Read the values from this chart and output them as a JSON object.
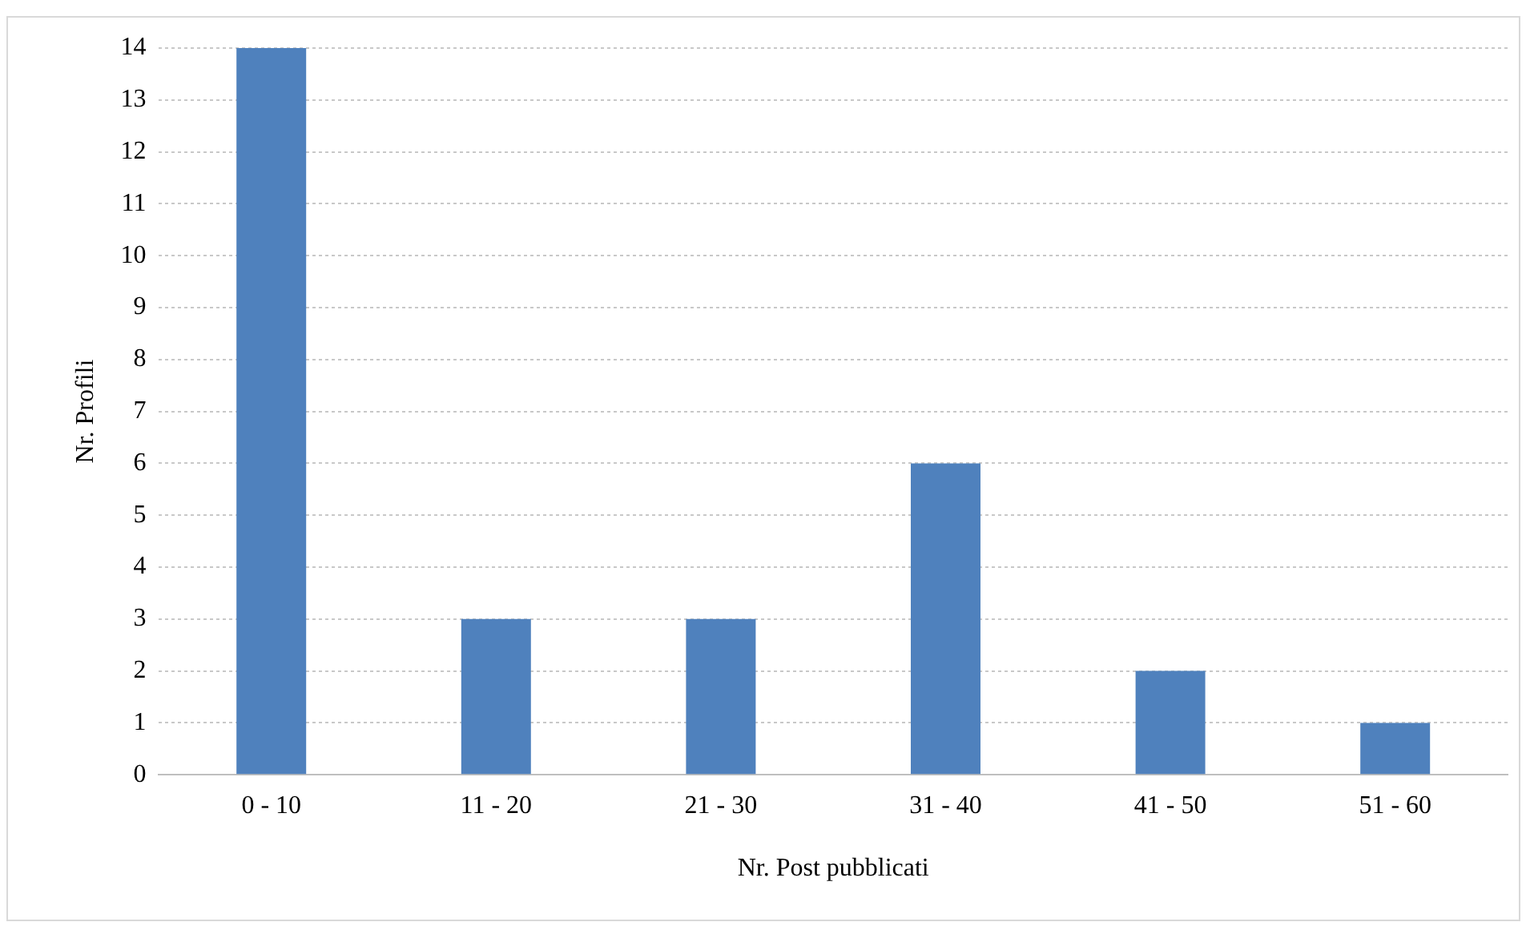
{
  "chart_data": {
    "type": "bar",
    "xlabel": "Nr. Post pubblicati",
    "ylabel": "Nr. Profili",
    "categories": [
      "0 - 10",
      "11 - 20",
      "21 - 30",
      "31 - 40",
      "41 - 50",
      "51 - 60"
    ],
    "values": [
      14,
      3,
      3,
      6,
      2,
      1
    ],
    "color": "#4f81bd",
    "ylim": [
      0,
      14
    ],
    "yticks": [
      0,
      1,
      2,
      3,
      4,
      5,
      6,
      7,
      8,
      9,
      10,
      11,
      12,
      13,
      14
    ],
    "grid": "y",
    "legend": false
  }
}
